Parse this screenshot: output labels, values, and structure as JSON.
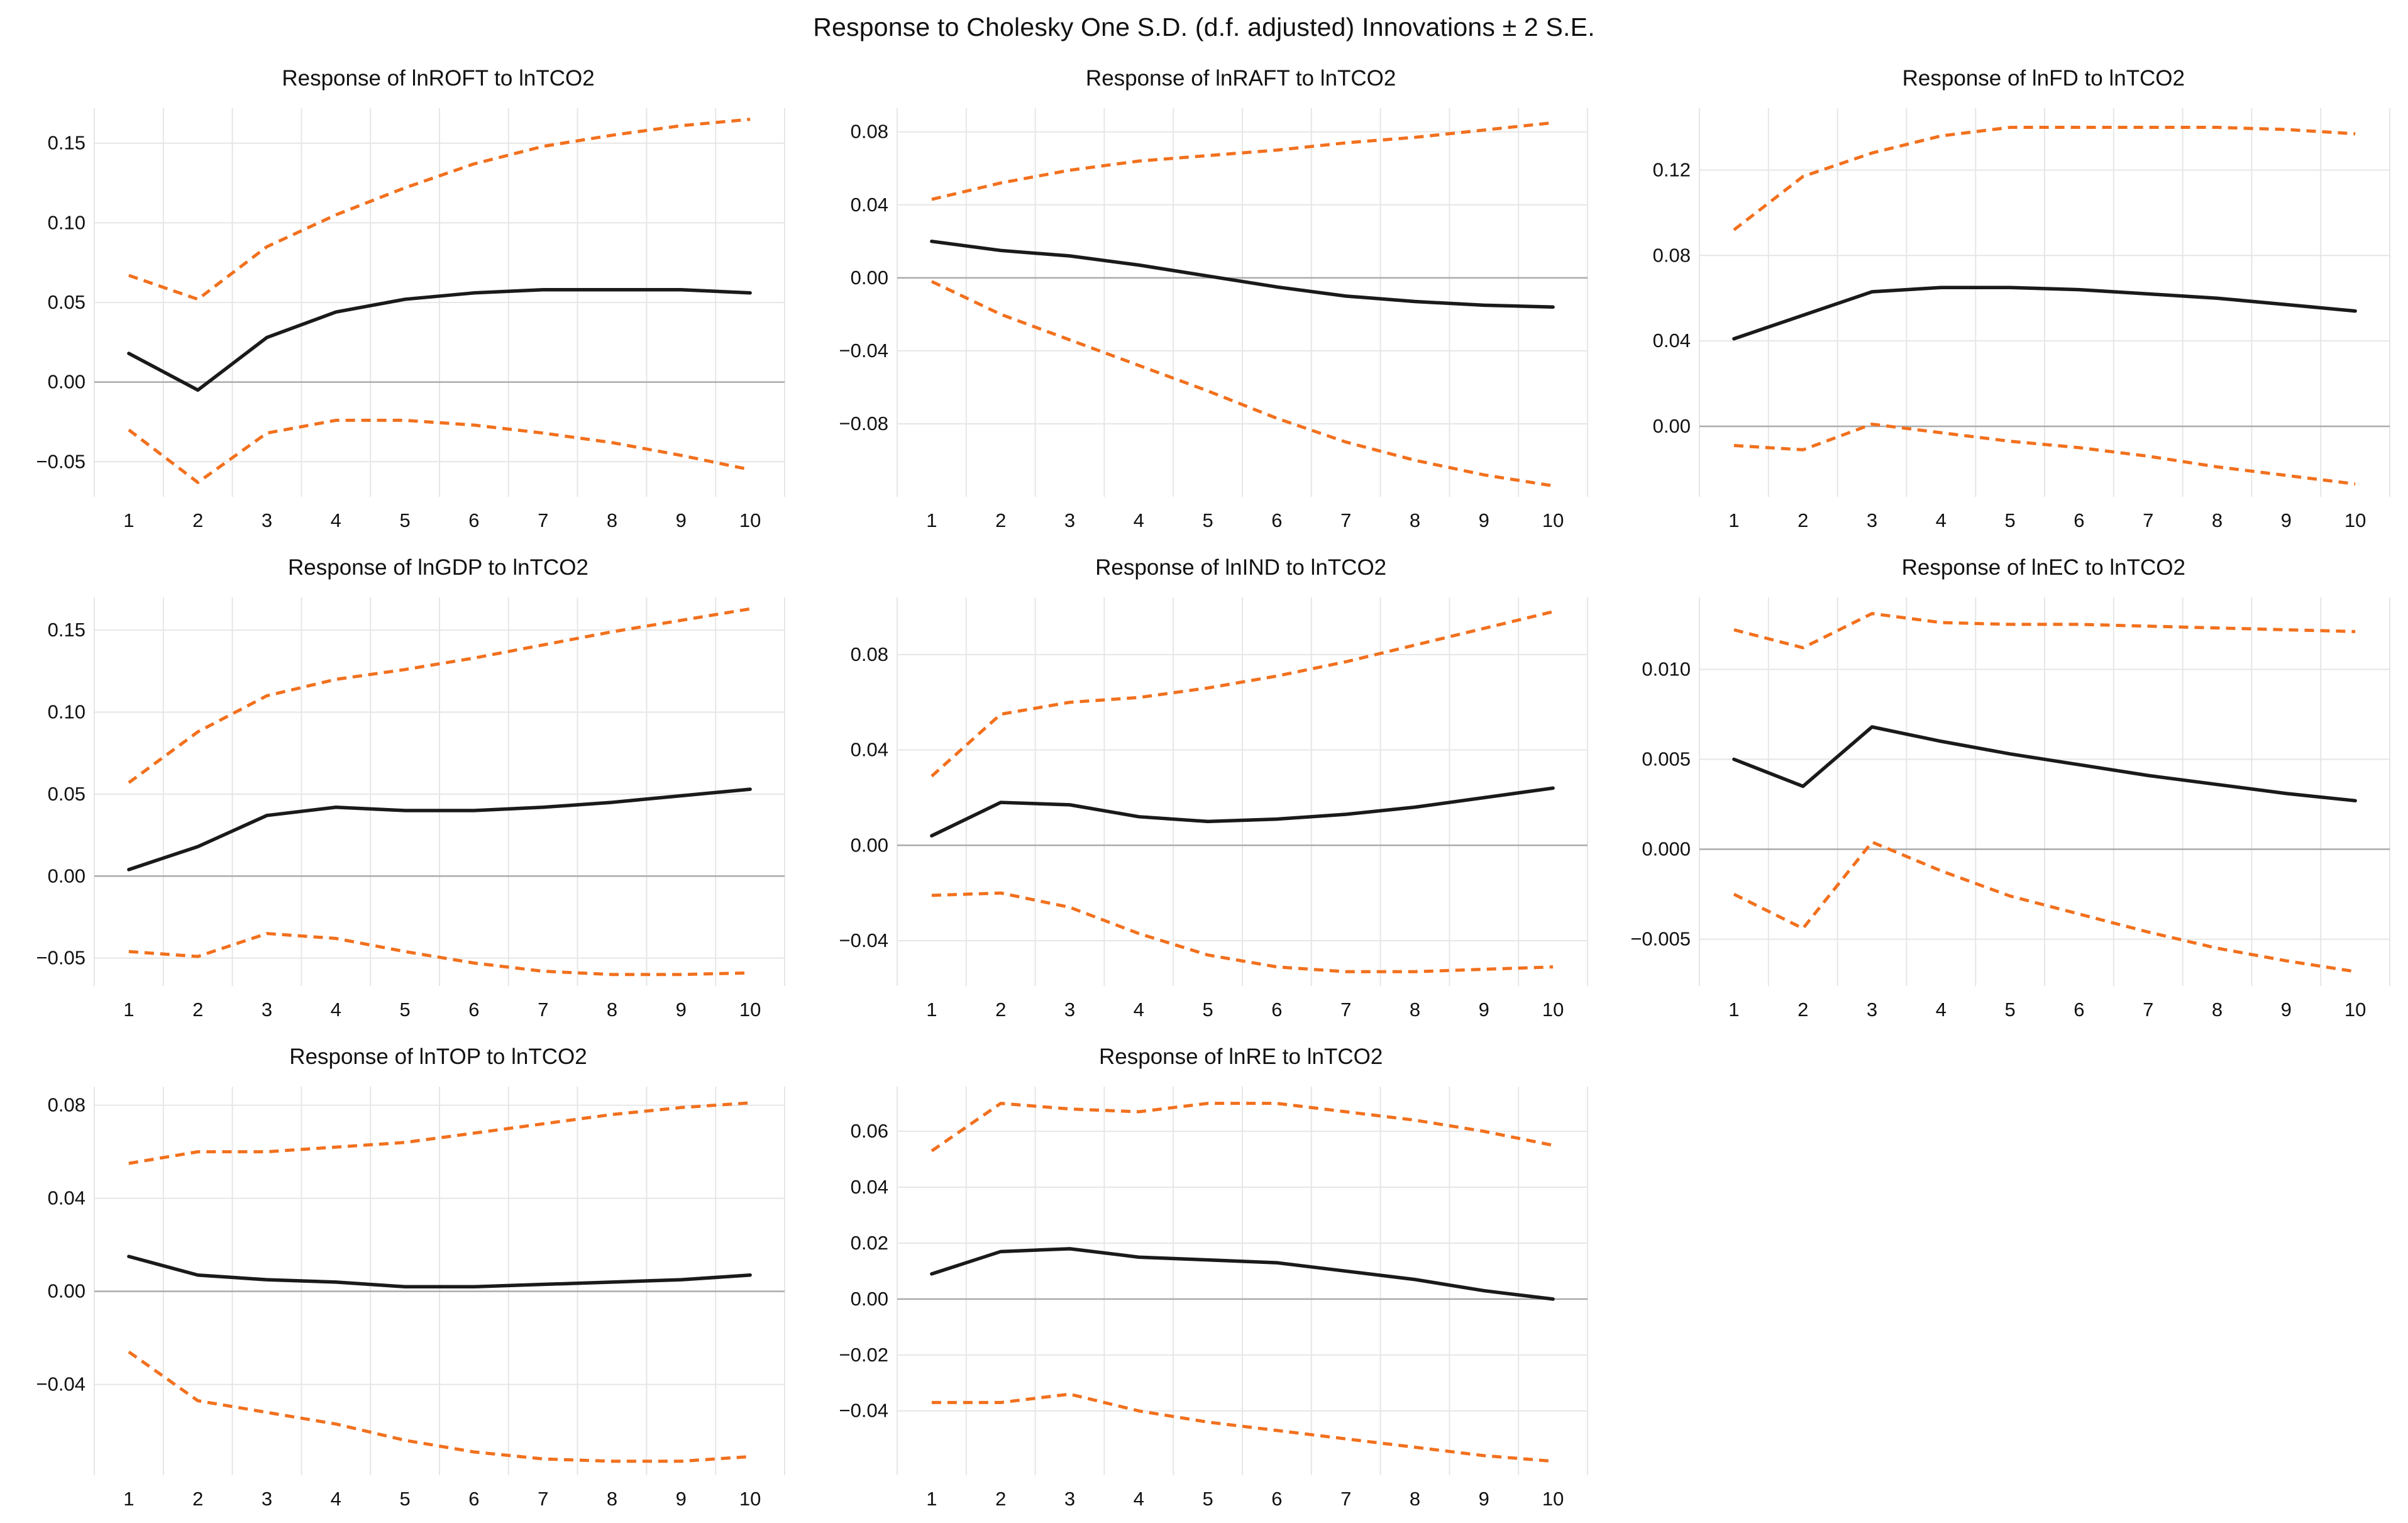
{
  "main_title": "Response to Cholesky One S.D. (d.f. adjusted) Innovations ± 2 S.E.",
  "colors": {
    "response_line": "#1a1a1a",
    "band_line": "#f2701d",
    "gridline": "#e6e6e6",
    "zero_line": "#ababab",
    "background": "#ffffff",
    "text": "#111111"
  },
  "chart_data": [
    {
      "type": "line",
      "title": "Response of lnROFT to lnTCO2",
      "response_variable": "lnROFT",
      "impulse_variable": "lnTCO2",
      "x": [
        1,
        2,
        3,
        4,
        5,
        6,
        7,
        8,
        9,
        10
      ],
      "series": [
        {
          "name": "Response",
          "style": "solid",
          "values": [
            0.018,
            -0.005,
            0.028,
            0.044,
            0.052,
            0.056,
            0.058,
            0.058,
            0.058,
            0.056
          ]
        },
        {
          "name": "+2 S.E.",
          "style": "dashed",
          "values": [
            0.067,
            0.052,
            0.085,
            0.105,
            0.122,
            0.137,
            0.148,
            0.155,
            0.161,
            0.165
          ]
        },
        {
          "name": "-2 S.E.",
          "style": "dashed",
          "values": [
            -0.03,
            -0.063,
            -0.032,
            -0.024,
            -0.024,
            -0.027,
            -0.032,
            -0.038,
            -0.046,
            -0.055
          ]
        }
      ],
      "ylim": [
        -0.072,
        0.172
      ],
      "yticks": [
        -0.05,
        0.0,
        0.05,
        0.1,
        0.15
      ],
      "ytick_labels": [
        "−0.05",
        "0.00",
        "0.05",
        "0.10",
        "0.15"
      ],
      "grid": true,
      "legend": "none"
    },
    {
      "type": "line",
      "title": "Response of lnRAFT to lnTCO2",
      "response_variable": "lnRAFT",
      "impulse_variable": "lnTCO2",
      "x": [
        1,
        2,
        3,
        4,
        5,
        6,
        7,
        8,
        9,
        10
      ],
      "series": [
        {
          "name": "Response",
          "style": "solid",
          "values": [
            0.02,
            0.015,
            0.012,
            0.007,
            0.001,
            -0.005,
            -0.01,
            -0.013,
            -0.015,
            -0.016
          ]
        },
        {
          "name": "+2 S.E.",
          "style": "dashed",
          "values": [
            0.043,
            0.052,
            0.059,
            0.064,
            0.067,
            0.07,
            0.074,
            0.077,
            0.081,
            0.085
          ]
        },
        {
          "name": "-2 S.E.",
          "style": "dashed",
          "values": [
            -0.002,
            -0.02,
            -0.034,
            -0.048,
            -0.062,
            -0.077,
            -0.09,
            -0.1,
            -0.108,
            -0.114
          ]
        }
      ],
      "ylim": [
        -0.12,
        0.093
      ],
      "yticks": [
        -0.08,
        -0.04,
        0.0,
        0.04,
        0.08
      ],
      "ytick_labels": [
        "−0.08",
        "−0.04",
        "0.00",
        "0.04",
        "0.08"
      ],
      "grid": true,
      "legend": "none"
    },
    {
      "type": "line",
      "title": "Response of lnFD to lnTCO2",
      "response_variable": "lnFD",
      "impulse_variable": "lnTCO2",
      "x": [
        1,
        2,
        3,
        4,
        5,
        6,
        7,
        8,
        9,
        10
      ],
      "series": [
        {
          "name": "Response",
          "style": "solid",
          "values": [
            0.041,
            0.052,
            0.063,
            0.065,
            0.065,
            0.064,
            0.062,
            0.06,
            0.057,
            0.054
          ]
        },
        {
          "name": "+2 S.E.",
          "style": "dashed",
          "values": [
            0.092,
            0.117,
            0.128,
            0.136,
            0.14,
            0.14,
            0.14,
            0.14,
            0.139,
            0.137
          ]
        },
        {
          "name": "-2 S.E.",
          "style": "dashed",
          "values": [
            -0.009,
            -0.011,
            0.001,
            -0.003,
            -0.007,
            -0.01,
            -0.014,
            -0.019,
            -0.023,
            -0.027
          ]
        }
      ],
      "ylim": [
        -0.033,
        0.149
      ],
      "yticks": [
        0.0,
        0.04,
        0.08,
        0.12
      ],
      "ytick_labels": [
        "0.00",
        "0.04",
        "0.08",
        "0.12"
      ],
      "grid": true,
      "legend": "none"
    },
    {
      "type": "line",
      "title": "Response of lnGDP to lnTCO2",
      "response_variable": "lnGDP",
      "impulse_variable": "lnTCO2",
      "x": [
        1,
        2,
        3,
        4,
        5,
        6,
        7,
        8,
        9,
        10
      ],
      "series": [
        {
          "name": "Response",
          "style": "solid",
          "values": [
            0.004,
            0.018,
            0.037,
            0.042,
            0.04,
            0.04,
            0.042,
            0.045,
            0.049,
            0.053
          ]
        },
        {
          "name": "+2 S.E.",
          "style": "dashed",
          "values": [
            0.057,
            0.088,
            0.11,
            0.12,
            0.126,
            0.133,
            0.141,
            0.149,
            0.156,
            0.163
          ]
        },
        {
          "name": "-2 S.E.",
          "style": "dashed",
          "values": [
            -0.046,
            -0.049,
            -0.035,
            -0.038,
            -0.046,
            -0.053,
            -0.058,
            -0.06,
            -0.06,
            -0.059
          ]
        }
      ],
      "ylim": [
        -0.067,
        0.17
      ],
      "yticks": [
        -0.05,
        0.0,
        0.05,
        0.1,
        0.15
      ],
      "ytick_labels": [
        "−0.05",
        "0.00",
        "0.05",
        "0.10",
        "0.15"
      ],
      "grid": true,
      "legend": "none"
    },
    {
      "type": "line",
      "title": "Response of lnIND to lnTCO2",
      "response_variable": "lnIND",
      "impulse_variable": "lnTCO2",
      "x": [
        1,
        2,
        3,
        4,
        5,
        6,
        7,
        8,
        9,
        10
      ],
      "series": [
        {
          "name": "Response",
          "style": "solid",
          "values": [
            0.004,
            0.018,
            0.017,
            0.012,
            0.01,
            0.011,
            0.013,
            0.016,
            0.02,
            0.024
          ]
        },
        {
          "name": "+2 S.E.",
          "style": "dashed",
          "values": [
            0.029,
            0.055,
            0.06,
            0.062,
            0.066,
            0.071,
            0.077,
            0.084,
            0.091,
            0.098
          ]
        },
        {
          "name": "-2 S.E.",
          "style": "dashed",
          "values": [
            -0.021,
            -0.02,
            -0.026,
            -0.037,
            -0.046,
            -0.051,
            -0.053,
            -0.053,
            -0.052,
            -0.051
          ]
        }
      ],
      "ylim": [
        -0.059,
        0.104
      ],
      "yticks": [
        -0.04,
        0.0,
        0.04,
        0.08
      ],
      "ytick_labels": [
        "−0.04",
        "0.00",
        "0.04",
        "0.08"
      ],
      "grid": true,
      "legend": "none"
    },
    {
      "type": "line",
      "title": "Response of lnEC to lnTCO2",
      "response_variable": "lnEC",
      "impulse_variable": "lnTCO2",
      "x": [
        1,
        2,
        3,
        4,
        5,
        6,
        7,
        8,
        9,
        10
      ],
      "series": [
        {
          "name": "Response",
          "style": "solid",
          "values": [
            0.005,
            0.0035,
            0.0068,
            0.006,
            0.0053,
            0.0047,
            0.0041,
            0.0036,
            0.0031,
            0.0027
          ]
        },
        {
          "name": "+2 S.E.",
          "style": "dashed",
          "values": [
            0.0122,
            0.0112,
            0.0131,
            0.0126,
            0.0125,
            0.0125,
            0.0124,
            0.0123,
            0.0122,
            0.0121
          ]
        },
        {
          "name": "-2 S.E.",
          "style": "dashed",
          "values": [
            -0.0025,
            -0.0044,
            0.0004,
            -0.0012,
            -0.0026,
            -0.0036,
            -0.0046,
            -0.0055,
            -0.0062,
            -0.0068
          ]
        }
      ],
      "ylim": [
        -0.0076,
        0.014
      ],
      "yticks": [
        -0.005,
        0.0,
        0.005,
        0.01
      ],
      "ytick_labels": [
        "−0.005",
        "0.000",
        "0.005",
        "0.010"
      ],
      "grid": true,
      "legend": "none"
    },
    {
      "type": "line",
      "title": "Response of lnTOP to lnTCO2",
      "response_variable": "lnTOP",
      "impulse_variable": "lnTCO2",
      "x": [
        1,
        2,
        3,
        4,
        5,
        6,
        7,
        8,
        9,
        10
      ],
      "series": [
        {
          "name": "Response",
          "style": "solid",
          "values": [
            0.015,
            0.007,
            0.005,
            0.004,
            0.002,
            0.002,
            0.003,
            0.004,
            0.005,
            0.007
          ]
        },
        {
          "name": "+2 S.E.",
          "style": "dashed",
          "values": [
            0.055,
            0.06,
            0.06,
            0.062,
            0.064,
            0.068,
            0.072,
            0.076,
            0.079,
            0.081
          ]
        },
        {
          "name": "-2 S.E.",
          "style": "dashed",
          "values": [
            -0.026,
            -0.047,
            -0.052,
            -0.057,
            -0.064,
            -0.069,
            -0.072,
            -0.073,
            -0.073,
            -0.071
          ]
        }
      ],
      "ylim": [
        -0.079,
        0.088
      ],
      "yticks": [
        -0.04,
        0.0,
        0.04,
        0.08
      ],
      "ytick_labels": [
        "−0.04",
        "0.00",
        "0.04",
        "0.08"
      ],
      "grid": true,
      "legend": "none"
    },
    {
      "type": "line",
      "title": "Response of lnRE to lnTCO2",
      "response_variable": "lnRE",
      "impulse_variable": "lnTCO2",
      "x": [
        1,
        2,
        3,
        4,
        5,
        6,
        7,
        8,
        9,
        10
      ],
      "series": [
        {
          "name": "Response",
          "style": "solid",
          "values": [
            0.009,
            0.017,
            0.018,
            0.015,
            0.014,
            0.013,
            0.01,
            0.007,
            0.003,
            0.0
          ]
        },
        {
          "name": "+2 S.E.",
          "style": "dashed",
          "values": [
            0.053,
            0.07,
            0.068,
            0.067,
            0.07,
            0.07,
            0.067,
            0.064,
            0.06,
            0.055
          ]
        },
        {
          "name": "-2 S.E.",
          "style": "dashed",
          "values": [
            -0.037,
            -0.037,
            -0.034,
            -0.04,
            -0.044,
            -0.047,
            -0.05,
            -0.053,
            -0.056,
            -0.058
          ]
        }
      ],
      "ylim": [
        -0.063,
        0.076
      ],
      "yticks": [
        -0.04,
        -0.02,
        0.0,
        0.02,
        0.04,
        0.06
      ],
      "ytick_labels": [
        "−0.04",
        "−0.02",
        "0.00",
        "0.02",
        "0.04",
        "0.06"
      ],
      "grid": true,
      "legend": "none"
    }
  ]
}
